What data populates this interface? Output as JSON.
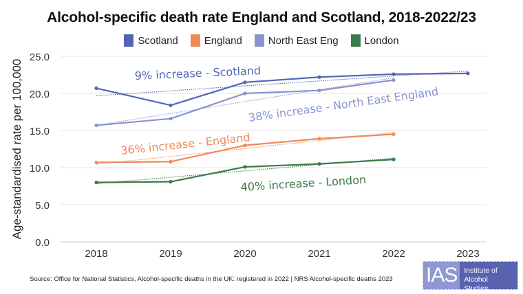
{
  "chart_data": {
    "type": "line",
    "title": "Alcohol-specific death rate England and Scotland, 2018-2022/23",
    "xlabel": "",
    "ylabel": "Age-standardised rate per 100,000",
    "x": [
      "2018",
      "2019",
      "2020",
      "2021",
      "2022",
      "2023"
    ],
    "ylim": [
      0,
      25
    ],
    "yticks": [
      "0.0",
      "5.0",
      "10.0",
      "15.0",
      "20.0",
      "25.0"
    ],
    "grid": true,
    "legend_position": "top-center",
    "series": [
      {
        "name": "Scotland",
        "color": "#5464b4",
        "values": [
          20.7,
          18.4,
          21.5,
          22.2,
          22.6,
          22.7
        ]
      },
      {
        "name": "England",
        "color": "#ee8a58",
        "values": [
          10.7,
          10.8,
          13.0,
          13.9,
          14.5,
          null
        ]
      },
      {
        "name": "North East Eng",
        "color": "#8893d0",
        "values": [
          15.7,
          16.6,
          20.0,
          20.4,
          21.8,
          null
        ]
      },
      {
        "name": "London",
        "color": "#3b7a4a",
        "values": [
          8.0,
          8.1,
          10.1,
          10.5,
          11.1,
          null
        ]
      }
    ],
    "annotations": [
      {
        "text": "9% increase - Scotland",
        "series": "Scotland"
      },
      {
        "text": "38% increase - North East England",
        "series": "North East Eng"
      },
      {
        "text": "36% increase - England",
        "series": "England"
      },
      {
        "text": "40% increase - London",
        "series": "London"
      }
    ]
  },
  "source": "Source: Office for National Statistics, Alcohol-specific deaths in the UK: registered in 2022 | NRS Alcohol-specific deaths 2023",
  "logo": {
    "abbr": "IAS",
    "line1": "Institute of",
    "line2": "Alcohol Studies"
  }
}
